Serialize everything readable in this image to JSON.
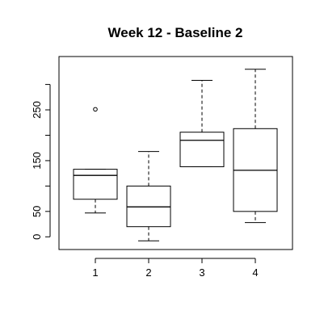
{
  "chart_data": {
    "type": "box",
    "title": "Week 12 - Baseline 2",
    "xlabel": "",
    "ylabel": "",
    "categories": [
      "1",
      "2",
      "3",
      "4"
    ],
    "ylim": [
      -25,
      355
    ],
    "yticks": [
      0,
      50,
      150,
      250
    ],
    "boxes": [
      {
        "category": "1",
        "whisker_low": 47,
        "q1": 74,
        "median": 121,
        "q3": 133,
        "whisker_high": 133,
        "outliers": [
          251
        ]
      },
      {
        "category": "2",
        "whisker_low": -8,
        "q1": 20,
        "median": 59,
        "q3": 100,
        "whisker_high": 168,
        "outliers": []
      },
      {
        "category": "3",
        "whisker_low": 138,
        "q1": 138,
        "median": 190,
        "q3": 206,
        "whisker_high": 308,
        "outliers": []
      },
      {
        "category": "4",
        "whisker_low": 28,
        "q1": 50,
        "median": 131,
        "q3": 213,
        "whisker_high": 330,
        "outliers": []
      }
    ],
    "grid": false,
    "legend": "none"
  }
}
